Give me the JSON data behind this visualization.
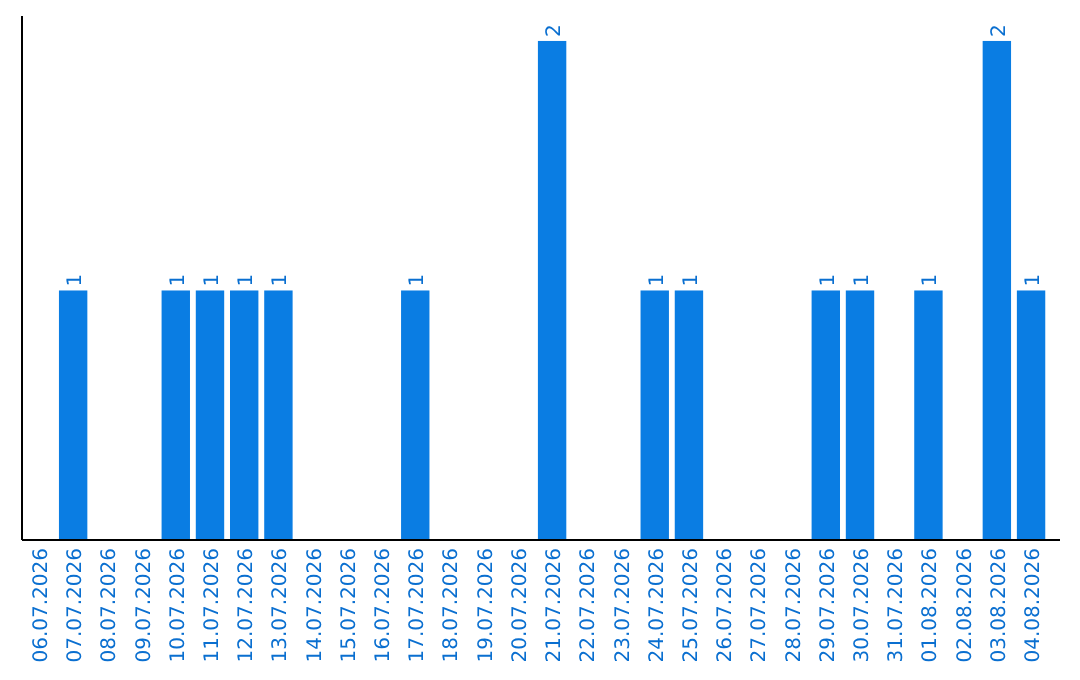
{
  "chart_data": {
    "type": "bar",
    "categories": [
      "06.07.2026",
      "07.07.2026",
      "08.07.2026",
      "09.07.2026",
      "10.07.2026",
      "11.07.2026",
      "12.07.2026",
      "13.07.2026",
      "14.07.2026",
      "15.07.2026",
      "16.07.2026",
      "17.07.2026",
      "18.07.2026",
      "19.07.2026",
      "20.07.2026",
      "21.07.2026",
      "22.07.2026",
      "23.07.2026",
      "24.07.2026",
      "25.07.2026",
      "26.07.2026",
      "27.07.2026",
      "28.07.2026",
      "29.07.2026",
      "30.07.2026",
      "31.07.2026",
      "01.08.2026",
      "02.08.2026",
      "03.08.2026",
      "04.08.2026"
    ],
    "values": [
      0,
      1,
      0,
      0,
      1,
      1,
      1,
      1,
      0,
      0,
      0,
      1,
      0,
      0,
      0,
      2,
      0,
      0,
      1,
      1,
      0,
      0,
      0,
      1,
      1,
      0,
      1,
      0,
      2,
      1
    ],
    "value_labels": [
      null,
      "1",
      null,
      null,
      "1",
      "1",
      "1",
      "1",
      null,
      null,
      null,
      "1",
      null,
      null,
      null,
      "2",
      null,
      null,
      "1",
      "1",
      null,
      null,
      null,
      "1",
      "1",
      null,
      "1",
      null,
      "2",
      "1"
    ],
    "color": "#0a7de3",
    "ylim": [
      0,
      2.1
    ],
    "tick_labels": "x"
  }
}
